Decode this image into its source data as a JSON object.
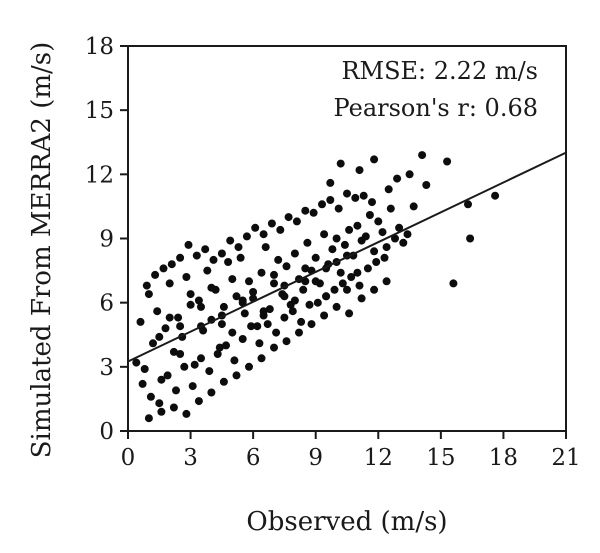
{
  "chart_data": {
    "type": "scatter",
    "xlabel": "Observed (m/s)",
    "ylabel": "Simulated From MERRA2 (m/s)",
    "xlim": [
      0,
      21
    ],
    "ylim": [
      0,
      18
    ],
    "xticks": [
      "0",
      "3",
      "6",
      "9",
      "12",
      "15",
      "18",
      "21"
    ],
    "yticks": [
      "0",
      "3",
      "6",
      "9",
      "12",
      "15",
      "18"
    ],
    "grid": false,
    "annotations": [
      "RMSE: 2.22 m/s",
      "Pearson's r: 0.68"
    ],
    "fit_line": {
      "intercept": 3.25,
      "slope": 0.465
    },
    "points": {
      "x": [
        0.4,
        0.6,
        0.8,
        1.0,
        1.2,
        1.4,
        1.6,
        1.8,
        2.0,
        2.2,
        2.4,
        2.6,
        2.8,
        3.0,
        3.2,
        3.4,
        3.6,
        3.8,
        4.0,
        4.2,
        4.4,
        4.6,
        4.8,
        5.0,
        5.2,
        5.4,
        5.6,
        5.8,
        6.0,
        6.2,
        6.4,
        6.6,
        6.8,
        7.0,
        7.2,
        7.4,
        7.6,
        7.8,
        8.0,
        8.2,
        8.4,
        8.6,
        8.8,
        9.0,
        9.2,
        9.4,
        9.6,
        9.8,
        10.0,
        10.2,
        10.4,
        10.6,
        10.8,
        11.0,
        11.2,
        11.4,
        11.6,
        11.8,
        12.0,
        12.2,
        12.4,
        12.6,
        12.8,
        13.0,
        13.2,
        13.4,
        0.7,
        1.1,
        1.5,
        1.9,
        2.3,
        2.7,
        3.1,
        3.5,
        3.9,
        4.3,
        4.7,
        5.1,
        5.5,
        5.9,
        6.3,
        6.7,
        7.1,
        7.5,
        7.9,
        8.3,
        8.7,
        9.1,
        9.5,
        9.9,
        10.3,
        10.7,
        11.1,
        11.5,
        11.9,
        12.3,
        0.9,
        1.3,
        1.7,
        2.1,
        2.5,
        2.9,
        3.3,
        3.7,
        4.1,
        4.5,
        4.9,
        5.3,
        5.7,
        6.1,
        6.5,
        6.9,
        7.3,
        7.7,
        8.1,
        8.5,
        8.9,
        9.3,
        9.7,
        10.1,
        10.5,
        10.9,
        11.3,
        11.7,
        1.0,
        1.6,
        2.2,
        2.8,
        3.4,
        4.0,
        4.6,
        5.2,
        5.8,
        6.4,
        7.0,
        7.6,
        8.2,
        8.8,
        9.4,
        10.0,
        10.6,
        11.2,
        11.8,
        12.4,
        2.0,
        2.5,
        3.0,
        3.5,
        4.0,
        4.5,
        5.0,
        5.5,
        6.0,
        6.5,
        7.0,
        7.5,
        8.0,
        8.5,
        9.0,
        9.5,
        10.0,
        10.5,
        11.0,
        1.5,
        2.5,
        3.5,
        4.5,
        5.5,
        6.5,
        7.5,
        8.5,
        9.5,
        10.5,
        14.1,
        15.3,
        16.3,
        17.6,
        16.4,
        15.6,
        13.7,
        12.9,
        11.8,
        11.1,
        10.2,
        9.7,
        14.3,
        13.5,
        12.5
      ],
      "y": [
        3.2,
        5.1,
        2.9,
        6.4,
        4.1,
        5.6,
        2.4,
        4.8,
        6.9,
        3.7,
        5.3,
        4.4,
        7.2,
        5.9,
        3.1,
        6.1,
        4.7,
        7.5,
        5.2,
        6.6,
        3.9,
        5.8,
        7.9,
        4.6,
        6.3,
        8.1,
        5.5,
        7.0,
        6.2,
        4.9,
        7.4,
        8.6,
        5.7,
        6.9,
        8.0,
        6.4,
        7.7,
        5.9,
        8.3,
        7.1,
        6.6,
        8.8,
        7.5,
        8.1,
        6.9,
        9.2,
        7.8,
        8.5,
        9.0,
        7.4,
        8.7,
        9.4,
        8.2,
        9.6,
        8.9,
        9.1,
        10.1,
        8.4,
        9.8,
        9.3,
        8.6,
        10.4,
        9.0,
        9.5,
        8.8,
        9.2,
        2.2,
        1.6,
        1.3,
        2.6,
        1.9,
        3.0,
        2.1,
        3.4,
        2.8,
        3.6,
        4.0,
        3.3,
        4.3,
        4.9,
        4.1,
        5.0,
        4.6,
        5.3,
        5.6,
        5.1,
        5.9,
        6.0,
        6.3,
        6.6,
        6.9,
        7.2,
        6.8,
        7.6,
        7.9,
        8.1,
        6.8,
        7.3,
        7.6,
        7.8,
        8.1,
        8.7,
        8.2,
        8.5,
        8.0,
        8.3,
        8.9,
        8.6,
        9.1,
        9.5,
        9.2,
        9.7,
        9.4,
        10.0,
        9.8,
        10.3,
        10.2,
        10.6,
        10.8,
        10.4,
        11.1,
        10.9,
        11.0,
        10.7,
        0.6,
        0.9,
        1.1,
        0.8,
        1.4,
        1.8,
        2.3,
        2.6,
        3.0,
        3.4,
        3.9,
        4.2,
        4.6,
        5.0,
        5.4,
        5.8,
        5.5,
        6.2,
        6.6,
        7.0,
        5.3,
        4.9,
        6.4,
        5.8,
        6.7,
        5.0,
        7.1,
        6.0,
        6.5,
        5.4,
        7.3,
        6.8,
        6.1,
        7.6,
        7.0,
        6.3,
        7.9,
        6.6,
        7.4,
        4.4,
        3.6,
        4.9,
        5.4,
        6.1,
        5.6,
        6.3,
        7.0,
        7.6,
        8.2,
        12.9,
        12.6,
        10.6,
        11.0,
        9.0,
        6.9,
        10.5,
        11.8,
        12.7,
        12.2,
        12.5,
        11.6,
        11.5,
        12.0,
        11.3
      ]
    }
  }
}
